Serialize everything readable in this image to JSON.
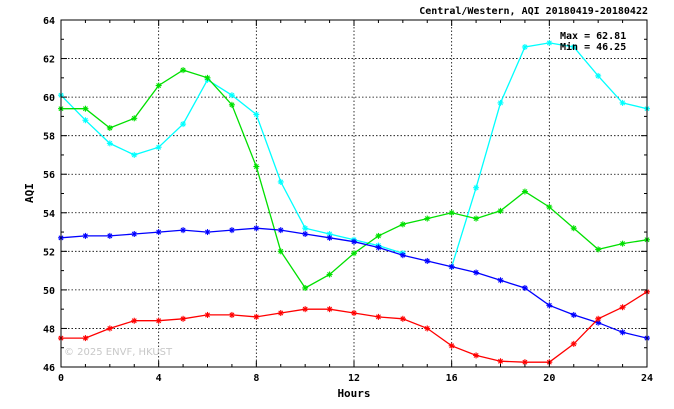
{
  "chart_data": {
    "type": "line",
    "title": "Central/Western, AQI 20180419-20180422",
    "xlabel": "Hours",
    "ylabel": "AQI",
    "xlim": [
      0,
      24
    ],
    "ylim": [
      46,
      64
    ],
    "xticks": [
      0,
      4,
      8,
      12,
      16,
      20,
      24
    ],
    "yticks": [
      46,
      48,
      50,
      52,
      54,
      56,
      58,
      60,
      62,
      64
    ],
    "grid": true,
    "annotations": {
      "max": "Max = 62.81",
      "min": "Min = 46.25"
    },
    "watermark": "© 2025 ENVF, HKUST",
    "x": [
      0,
      1,
      2,
      3,
      4,
      5,
      6,
      7,
      8,
      9,
      10,
      11,
      12,
      13,
      14,
      15,
      16,
      17,
      18,
      19,
      20,
      21,
      22,
      23,
      24
    ],
    "series": [
      {
        "color": "#00ffff",
        "values": [
          60.1,
          58.8,
          57.6,
          57.0,
          57.4,
          58.6,
          60.9,
          60.1,
          59.1,
          55.6,
          53.2,
          52.9,
          52.6,
          52.3,
          51.9,
          null,
          51.2,
          55.3,
          59.7,
          62.6,
          62.81,
          62.6,
          61.1,
          59.7,
          59.4
        ]
      },
      {
        "color": "#00e000",
        "values": [
          59.4,
          59.4,
          58.4,
          58.9,
          60.6,
          61.4,
          61.0,
          59.6,
          56.4,
          52.0,
          50.1,
          50.8,
          51.9,
          52.8,
          53.4,
          53.7,
          54.0,
          53.7,
          54.1,
          55.1,
          54.3,
          53.2,
          52.1,
          52.4,
          52.6
        ]
      },
      {
        "color": "#0000ff",
        "values": [
          52.7,
          52.8,
          52.8,
          52.9,
          53.0,
          53.1,
          53.0,
          53.1,
          53.2,
          53.1,
          52.9,
          52.7,
          52.5,
          52.2,
          51.8,
          51.5,
          51.2,
          50.9,
          50.5,
          50.1,
          49.2,
          48.7,
          48.3,
          47.8,
          47.5
        ]
      },
      {
        "color": "#ff0000",
        "values": [
          47.5,
          47.5,
          48.0,
          48.4,
          48.4,
          48.5,
          48.7,
          48.7,
          48.6,
          48.8,
          49.0,
          49.0,
          48.8,
          48.6,
          48.5,
          48.0,
          47.1,
          46.6,
          46.3,
          46.25,
          46.25,
          47.2,
          48.5,
          49.1,
          49.9
        ]
      }
    ]
  }
}
